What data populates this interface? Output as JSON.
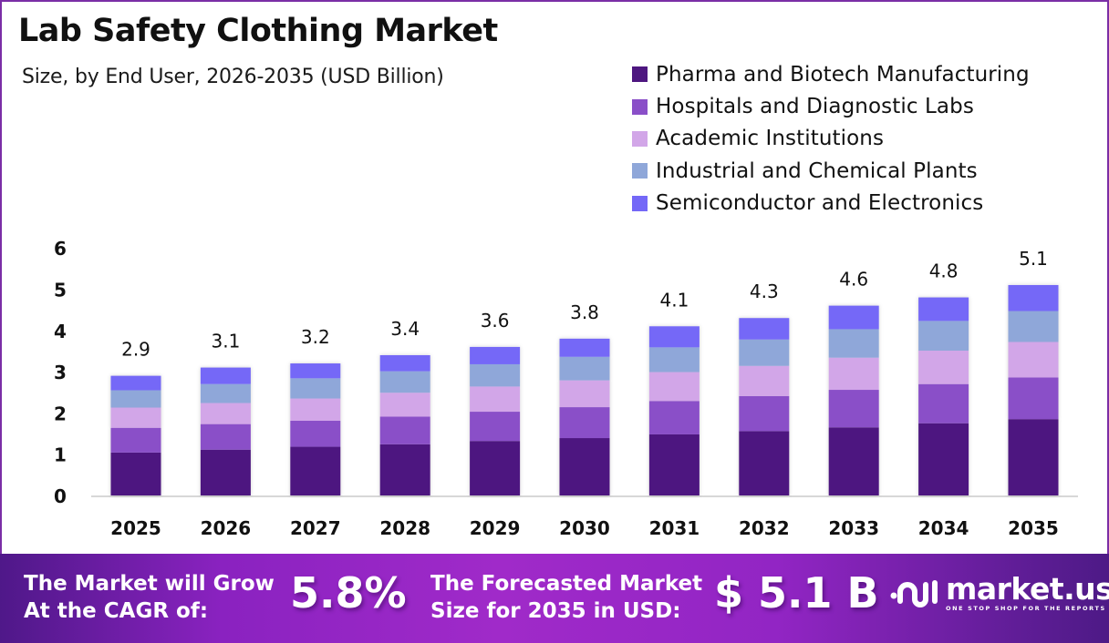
{
  "header": {
    "title": "Lab Safety Clothing Market",
    "subtitle": "Size, by End User, 2026-2035 (USD Billion)"
  },
  "chart_data": {
    "type": "bar",
    "stacked": true,
    "title": "Lab Safety Clothing Market",
    "subtitle": "Size, by End User, 2026-2035 (USD Billion)",
    "xlabel": "",
    "ylabel": "",
    "ylim": [
      0,
      6
    ],
    "yticks": [
      0,
      1,
      2,
      3,
      4,
      5,
      6
    ],
    "grid": false,
    "legend_position": "top-right",
    "categories": [
      "2025",
      "2026",
      "2027",
      "2028",
      "2029",
      "2030",
      "2031",
      "2032",
      "2033",
      "2034",
      "2035"
    ],
    "totals": [
      2.9,
      3.1,
      3.2,
      3.4,
      3.6,
      3.8,
      4.1,
      4.3,
      4.6,
      4.8,
      5.1
    ],
    "total_labels": [
      "2.9",
      "3.1",
      "3.2",
      "3.4",
      "3.6",
      "3.8",
      "4.1",
      "4.3",
      "4.6",
      "4.8",
      "5.1"
    ],
    "series": [
      {
        "name": "Pharma and Biotech Manufacturing",
        "color": "#4e1780",
        "values": [
          1.04,
          1.11,
          1.18,
          1.24,
          1.32,
          1.39,
          1.48,
          1.56,
          1.65,
          1.75,
          1.85
        ]
      },
      {
        "name": "Hospitals and Diagnostic Labs",
        "color": "#8a4fc8",
        "values": [
          0.6,
          0.62,
          0.63,
          0.67,
          0.71,
          0.75,
          0.81,
          0.85,
          0.91,
          0.95,
          1.01
        ]
      },
      {
        "name": "Academic Institutions",
        "color": "#d2a6e8",
        "values": [
          0.49,
          0.51,
          0.54,
          0.58,
          0.61,
          0.65,
          0.7,
          0.73,
          0.78,
          0.81,
          0.86
        ]
      },
      {
        "name": "Industrial and Chemical Plants",
        "color": "#8fa7d9",
        "values": [
          0.42,
          0.46,
          0.49,
          0.52,
          0.54,
          0.57,
          0.6,
          0.64,
          0.69,
          0.72,
          0.75
        ]
      },
      {
        "name": "Semiconductor and Electronics",
        "color": "#7468f7",
        "values": [
          0.35,
          0.4,
          0.36,
          0.39,
          0.42,
          0.44,
          0.51,
          0.52,
          0.57,
          0.57,
          0.63
        ]
      }
    ]
  },
  "footer": {
    "cagr_text_line1": "The Market will Grow",
    "cagr_text_line2": "At the CAGR of:",
    "cagr_value": "5.8%",
    "forecast_text_line1": "The Forecasted Market",
    "forecast_text_line2": "Size for 2035 in USD:",
    "forecast_value": "$ 5.1 B",
    "brand_name": "market.us",
    "brand_tagline": "ONE STOP SHOP FOR THE REPORTS",
    "brand_icon": "market-us-logo-icon"
  }
}
